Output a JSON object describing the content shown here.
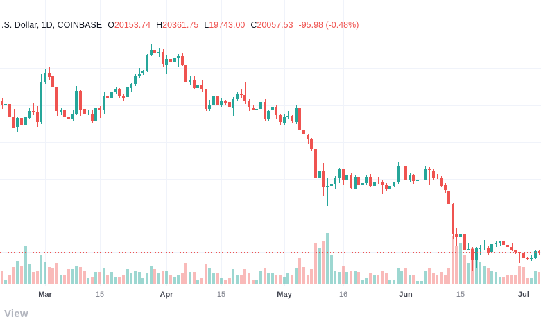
{
  "header": {
    "symbol": ".S. Dollar",
    "interval": "1D",
    "exchange": "COINBASE",
    "ohlc": [
      {
        "label": "O",
        "value": "20153.74"
      },
      {
        "label": "H",
        "value": "20361.75"
      },
      {
        "label": "L",
        "value": "19743.00"
      },
      {
        "label": "C",
        "value": "20057.53"
      }
    ],
    "change": "-95.98 (-0.48%)"
  },
  "logo": {
    "text": "View"
  },
  "colors": {
    "up": "#26a69a",
    "down": "#ef5350",
    "vol_up": "rgba(38,166,154,0.45)",
    "vol_down": "rgba(239,83,80,0.4)",
    "grid": "#f0f3fa",
    "axis_line": "#e0e3eb",
    "axis_text_day": "#787b86",
    "axis_text_month": "#434651",
    "price_line": "#ef5350",
    "legend_text": "#131722",
    "legend_value": "#ef5350"
  },
  "chart_data": {
    "type": "candlestick",
    "title": ".S. Dollar, 1D, COINBASE",
    "interval": "1D",
    "exchange": "COINBASE",
    "legend_ohlc": {
      "o": 20153.74,
      "h": 20361.75,
      "l": 19743.0,
      "c": 20057.53,
      "change": -95.98,
      "change_pct": -0.48
    },
    "price_line": 20057.53,
    "y_range": {
      "min": 17000,
      "max": 48800
    },
    "grid": true,
    "h_grid_step": 5000,
    "h_grid_from": 20000,
    "h_grid_to": 45000,
    "start_date": "2022-02-18",
    "x_axis_labels": [
      {
        "label": "Mar",
        "index": 11,
        "type": "month"
      },
      {
        "label": "15",
        "index": 25,
        "type": "day"
      },
      {
        "label": "Apr",
        "index": 42,
        "type": "month"
      },
      {
        "label": "15",
        "index": 56,
        "type": "day"
      },
      {
        "label": "May",
        "index": 72,
        "type": "month"
      },
      {
        "label": "16",
        "index": 87,
        "type": "day"
      },
      {
        "label": "Jun",
        "index": 103,
        "type": "month"
      },
      {
        "label": "15",
        "index": 117,
        "type": "day"
      },
      {
        "label": "Jul",
        "index": 133,
        "type": "month"
      }
    ],
    "candles_format": [
      "open",
      "high",
      "low",
      "close",
      "volume"
    ],
    "candles": [
      [
        40540,
        40960,
        39450,
        39970,
        22
      ],
      [
        39970,
        40440,
        39640,
        40120,
        8
      ],
      [
        40120,
        40130,
        38060,
        38390,
        14
      ],
      [
        38390,
        39490,
        36830,
        37010,
        28
      ],
      [
        37010,
        38450,
        36350,
        38230,
        38
      ],
      [
        38230,
        39240,
        37050,
        37250,
        30
      ],
      [
        37250,
        38750,
        34320,
        38330,
        62
      ],
      [
        38330,
        39690,
        38030,
        39230,
        32
      ],
      [
        39230,
        40330,
        38600,
        39120,
        20
      ],
      [
        39120,
        39870,
        37020,
        37700,
        22
      ],
      [
        37700,
        44230,
        37450,
        43190,
        48
      ],
      [
        43190,
        44950,
        42830,
        44420,
        36
      ],
      [
        44420,
        45100,
        43330,
        43890,
        28
      ],
      [
        43890,
        44100,
        41830,
        42450,
        26
      ],
      [
        42450,
        42530,
        38580,
        39140,
        34
      ],
      [
        39140,
        39610,
        38600,
        39400,
        14
      ],
      [
        39400,
        39700,
        38090,
        38420,
        15
      ],
      [
        38420,
        39550,
        37160,
        38060,
        24
      ],
      [
        38060,
        39370,
        37870,
        38730,
        24
      ],
      [
        38730,
        42620,
        38660,
        41970,
        30
      ],
      [
        41970,
        42050,
        38570,
        39440,
        28
      ],
      [
        39440,
        40250,
        38230,
        38730,
        22
      ],
      [
        38730,
        39400,
        38660,
        38810,
        10
      ],
      [
        38810,
        39290,
        37590,
        37790,
        12
      ],
      [
        37790,
        39870,
        37580,
        39670,
        20
      ],
      [
        39670,
        39890,
        38240,
        39280,
        20
      ],
      [
        39280,
        41720,
        38850,
        41140,
        26
      ],
      [
        41140,
        41480,
        40500,
        40950,
        16
      ],
      [
        40950,
        42330,
        40220,
        41770,
        20
      ],
      [
        41770,
        42400,
        41500,
        42190,
        12
      ],
      [
        42190,
        42300,
        40920,
        41280,
        12
      ],
      [
        41280,
        41550,
        40570,
        41020,
        16
      ],
      [
        41020,
        43360,
        40870,
        42370,
        24
      ],
      [
        42370,
        43030,
        41750,
        42900,
        18
      ],
      [
        42900,
        44220,
        42600,
        44010,
        22
      ],
      [
        44010,
        45070,
        43600,
        44330,
        20
      ],
      [
        44330,
        44800,
        44080,
        44540,
        10
      ],
      [
        44540,
        46950,
        44440,
        46830,
        18
      ],
      [
        46830,
        48190,
        46670,
        47450,
        30
      ],
      [
        47450,
        48120,
        46590,
        47070,
        24
      ],
      [
        47070,
        47720,
        46540,
        47170,
        18
      ],
      [
        47170,
        47600,
        45220,
        45540,
        22
      ],
      [
        45540,
        46720,
        44250,
        46290,
        22
      ],
      [
        46290,
        47200,
        45620,
        45830,
        14
      ],
      [
        45830,
        47440,
        45580,
        46450,
        12
      ],
      [
        46450,
        46890,
        45150,
        46620,
        16
      ],
      [
        46620,
        47080,
        45360,
        45510,
        18
      ],
      [
        45510,
        45510,
        43120,
        43170,
        34
      ],
      [
        43170,
        43900,
        42730,
        43450,
        20
      ],
      [
        43450,
        43970,
        42110,
        42280,
        20
      ],
      [
        42280,
        42800,
        42130,
        42770,
        8
      ],
      [
        42770,
        43410,
        41870,
        42160,
        10
      ],
      [
        42160,
        42250,
        39200,
        39530,
        32
      ],
      [
        39530,
        40700,
        39250,
        40080,
        26
      ],
      [
        40080,
        41560,
        39570,
        41170,
        18
      ],
      [
        41170,
        41500,
        39550,
        39940,
        18
      ],
      [
        39940,
        40870,
        39770,
        40550,
        10
      ],
      [
        40550,
        40700,
        40010,
        40380,
        8
      ],
      [
        40380,
        40600,
        39540,
        39680,
        10
      ],
      [
        39680,
        41120,
        38540,
        40800,
        24
      ],
      [
        40800,
        41760,
        40570,
        41500,
        16
      ],
      [
        41500,
        42230,
        40910,
        41370,
        16
      ],
      [
        41370,
        43130,
        40100,
        40480,
        24
      ],
      [
        40480,
        40790,
        39180,
        39710,
        18
      ],
      [
        39710,
        39980,
        39290,
        39450,
        8
      ],
      [
        39450,
        39940,
        39030,
        39470,
        8
      ],
      [
        39470,
        40610,
        38220,
        40440,
        22
      ],
      [
        40440,
        40770,
        37890,
        38120,
        26
      ],
      [
        38120,
        39430,
        37920,
        39240,
        18
      ],
      [
        39240,
        40400,
        38930,
        39750,
        18
      ],
      [
        39750,
        39920,
        38180,
        38600,
        16
      ],
      [
        38600,
        38800,
        37310,
        37640,
        14
      ],
      [
        37640,
        38700,
        37280,
        38470,
        12
      ],
      [
        38470,
        39200,
        38060,
        38510,
        18
      ],
      [
        38510,
        38660,
        37520,
        37730,
        14
      ],
      [
        37730,
        40000,
        37450,
        39690,
        26
      ],
      [
        39690,
        39850,
        35590,
        36550,
        42
      ],
      [
        36550,
        36670,
        35260,
        36040,
        28
      ],
      [
        36040,
        36130,
        34780,
        35470,
        14
      ],
      [
        35470,
        35510,
        33750,
        34060,
        24
      ],
      [
        34060,
        34240,
        30080,
        30080,
        66
      ],
      [
        30080,
        32660,
        29730,
        31020,
        58
      ],
      [
        31020,
        32160,
        27670,
        28940,
        70
      ],
      [
        28940,
        30100,
        26350,
        29020,
        82
      ],
      [
        29020,
        31080,
        28700,
        29280,
        48
      ],
      [
        29280,
        30340,
        28590,
        30050,
        22
      ],
      [
        30050,
        31460,
        29450,
        31300,
        20
      ],
      [
        31300,
        31330,
        29130,
        29860,
        30
      ],
      [
        29860,
        30740,
        29470,
        30440,
        20
      ],
      [
        30440,
        30710,
        28650,
        28700,
        22
      ],
      [
        28700,
        30550,
        28690,
        30310,
        22
      ],
      [
        30310,
        30750,
        28720,
        29200,
        20
      ],
      [
        29200,
        29620,
        28950,
        29440,
        8
      ],
      [
        29440,
        30490,
        29260,
        30290,
        10
      ],
      [
        30290,
        30670,
        28900,
        29110,
        18
      ],
      [
        29110,
        29830,
        28690,
        29650,
        16
      ],
      [
        29650,
        30220,
        29330,
        29540,
        14
      ],
      [
        29540,
        29850,
        28020,
        29200,
        22
      ],
      [
        29200,
        29390,
        28280,
        28620,
        18
      ],
      [
        28620,
        29230,
        28520,
        29030,
        8
      ],
      [
        29030,
        29560,
        28840,
        29470,
        7
      ],
      [
        29470,
        32220,
        29300,
        31730,
        26
      ],
      [
        31730,
        32380,
        31210,
        31790,
        22
      ],
      [
        31790,
        31980,
        29320,
        29800,
        26
      ],
      [
        29800,
        30690,
        29590,
        30450,
        16
      ],
      [
        30450,
        30630,
        29340,
        29700,
        14
      ],
      [
        29700,
        29960,
        29480,
        29860,
        6
      ],
      [
        29860,
        30160,
        29560,
        29910,
        6
      ],
      [
        29910,
        31740,
        29900,
        31370,
        22
      ],
      [
        31370,
        31560,
        29220,
        31150,
        26
      ],
      [
        31150,
        31290,
        29870,
        30210,
        18
      ],
      [
        30210,
        30670,
        29940,
        30110,
        14
      ],
      [
        30110,
        30330,
        28890,
        29090,
        20
      ],
      [
        29090,
        29440,
        28100,
        28420,
        16
      ],
      [
        28420,
        28530,
        26590,
        26600,
        26
      ],
      [
        26600,
        26790,
        21930,
        22490,
        78
      ],
      [
        22490,
        23330,
        20820,
        22130,
        62
      ],
      [
        22130,
        22780,
        20080,
        22570,
        66
      ],
      [
        22570,
        22970,
        20190,
        20380,
        48
      ],
      [
        20380,
        21330,
        20250,
        20470,
        34
      ],
      [
        20470,
        20790,
        17600,
        19010,
        58
      ],
      [
        19010,
        20740,
        17950,
        20570,
        44
      ],
      [
        20570,
        21080,
        19640,
        20570,
        36
      ],
      [
        20570,
        21720,
        20380,
        20710,
        30
      ],
      [
        20710,
        20870,
        19770,
        19970,
        26
      ],
      [
        19970,
        21220,
        19890,
        21110,
        22
      ],
      [
        21110,
        21550,
        20740,
        21230,
        20
      ],
      [
        21230,
        21590,
        20930,
        21500,
        12
      ],
      [
        21500,
        21880,
        20990,
        21030,
        12
      ],
      [
        21030,
        21530,
        20510,
        20730,
        16
      ],
      [
        20730,
        21200,
        20190,
        20280,
        16
      ],
      [
        20280,
        20420,
        19850,
        20100,
        16
      ],
      [
        20100,
        20150,
        18630,
        19940,
        30
      ],
      [
        19940,
        20900,
        18980,
        19270,
        28
      ],
      [
        19270,
        19440,
        18970,
        19240,
        10
      ],
      [
        19240,
        19640,
        18780,
        19300,
        10
      ],
      [
        19300,
        20350,
        19060,
        20230,
        22
      ],
      [
        20153.74,
        20361.75,
        19743.0,
        20057.53,
        20
      ]
    ]
  }
}
